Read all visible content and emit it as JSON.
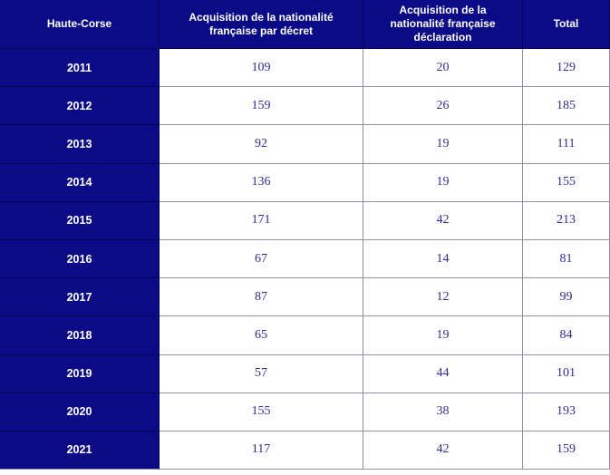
{
  "chart_data": {
    "type": "table",
    "title": "Haute-Corse",
    "corner_header": "Haute-Corse",
    "columns": [
      "Acquisition de la nationalité française par décret",
      "Acquisition de la nationalité française déclaration",
      "Total"
    ],
    "years": [
      "2011",
      "2012",
      "2013",
      "2014",
      "2015",
      "2016",
      "2017",
      "2018",
      "2019",
      "2020",
      "2021"
    ],
    "rows": [
      [
        109,
        20,
        129
      ],
      [
        159,
        26,
        185
      ],
      [
        92,
        19,
        111
      ],
      [
        136,
        19,
        155
      ],
      [
        171,
        42,
        213
      ],
      [
        67,
        14,
        81
      ],
      [
        87,
        12,
        99
      ],
      [
        65,
        19,
        84
      ],
      [
        57,
        44,
        101
      ],
      [
        155,
        38,
        193
      ],
      [
        117,
        42,
        159
      ]
    ],
    "layout": {
      "grid": true,
      "header_background": "navy",
      "row_header_background": "navy"
    }
  },
  "colors": {
    "navy": "#0b0b87",
    "navy-line": "#06064f",
    "grid": "#8e8ea9",
    "num": "#2d2d96",
    "white": "#ffffff"
  }
}
